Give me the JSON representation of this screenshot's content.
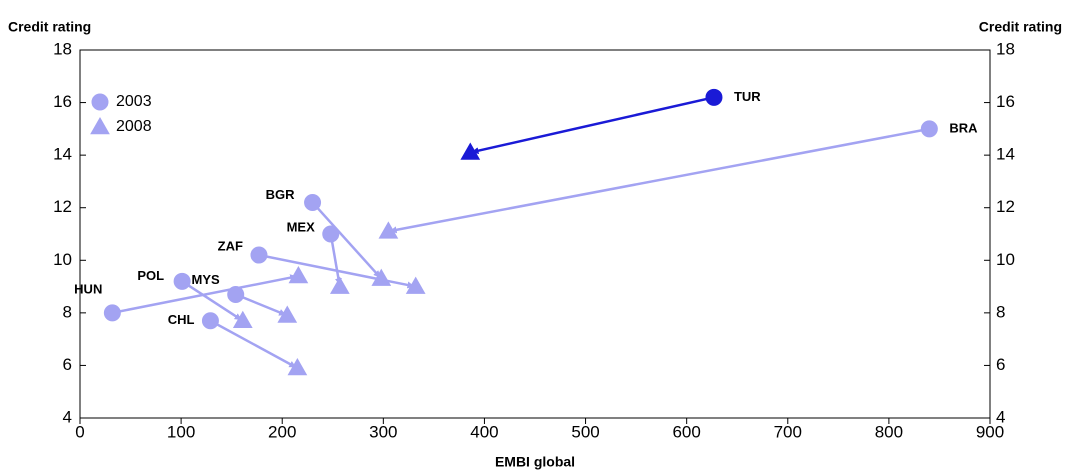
{
  "chart_data": {
    "type": "scatter",
    "x_label": "EMBI global",
    "y_label": "Credit rating",
    "categories": [
      "TUR",
      "BRA",
      "BGR",
      "MEX",
      "ZAF",
      "HUN",
      "POL",
      "MYS",
      "CHL"
    ],
    "colors": [
      "#1a1ad6",
      "#a3a3f2",
      "#a3a3f2",
      "#a3a3f2",
      "#a3a3f2",
      "#a3a3f2",
      "#a3a3f2",
      "#a3a3f2",
      "#a3a3f2"
    ],
    "series": [
      {
        "name": "2003",
        "marker": "circle",
        "color": "#a3a3f2",
        "x": [
          627,
          840,
          230,
          248,
          177,
          32,
          101,
          154,
          129
        ],
        "values": [
          16.2,
          15.0,
          12.2,
          11.0,
          10.2,
          8.0,
          9.2,
          8.7,
          7.7
        ]
      },
      {
        "name": "2008",
        "marker": "triangle",
        "color": "#a3a3f2",
        "x": [
          386,
          305,
          298,
          257,
          332,
          216,
          161,
          205,
          215
        ],
        "values": [
          14.1,
          11.1,
          9.3,
          9.0,
          9.0,
          9.4,
          7.7,
          7.9,
          5.9
        ]
      }
    ],
    "xlim": [
      0,
      900
    ],
    "xticks": [
      0,
      100,
      200,
      300,
      400,
      500,
      600,
      700,
      800,
      900
    ],
    "ylim": [
      4,
      18
    ],
    "yticks": [
      4,
      6,
      8,
      10,
      12,
      14,
      16,
      18
    ]
  }
}
